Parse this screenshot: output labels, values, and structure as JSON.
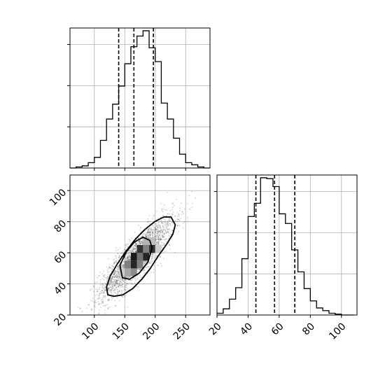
{
  "chart_data": [
    {
      "type": "histogram",
      "panel": "top-left",
      "x_ticks": [
        100,
        150,
        200,
        250
      ],
      "x_tick_labels": [
        "",
        "",
        "",
        ""
      ],
      "xlim": [
        60,
        290
      ],
      "y_tick_labels": [],
      "bin_edges": [
        60,
        70,
        80,
        90,
        100,
        110,
        120,
        130,
        140,
        150,
        160,
        170,
        180,
        190,
        200,
        210,
        220,
        230,
        240,
        250,
        260,
        270,
        280,
        290
      ],
      "counts": [
        0.0,
        0.1,
        0.2,
        0.5,
        1.0,
        2.6,
        4.6,
        6.0,
        7.7,
        9.8,
        11.4,
        12.4,
        12.9,
        11.3,
        10.0,
        6.1,
        4.6,
        2.8,
        1.3,
        0.5,
        0.3,
        0.1,
        0.0
      ],
      "quantiles": [
        140,
        165,
        197
      ],
      "grid": true
    },
    {
      "type": "histogram",
      "panel": "bottom-right",
      "x_ticks": [
        20,
        40,
        60,
        80,
        100
      ],
      "x_tick_labels": [
        "20",
        "40",
        "60",
        "80",
        "100"
      ],
      "xlim": [
        20,
        110
      ],
      "bin_edges": [
        20,
        24,
        28,
        32,
        36,
        40,
        44,
        48,
        52,
        56,
        60,
        64,
        68,
        72,
        76,
        80,
        84,
        88,
        92,
        96,
        100,
        104,
        108
      ],
      "counts": [
        0.2,
        0.7,
        1.8,
        3.1,
        6.4,
        11.2,
        12.7,
        15.6,
        15.5,
        14.6,
        11.5,
        10.4,
        7.4,
        4.9,
        3.0,
        1.6,
        0.8,
        0.5,
        0.2,
        0.1,
        0.0,
        0.0
      ],
      "quantiles": [
        45,
        57,
        70
      ],
      "grid": true
    },
    {
      "type": "scatter",
      "panel": "bottom-left",
      "x_ticks": [
        100,
        150,
        200,
        250
      ],
      "x_tick_labels": [
        "100",
        "150",
        "200",
        "250"
      ],
      "y_ticks": [
        20,
        40,
        60,
        80,
        100
      ],
      "y_tick_labels": [
        "20",
        "40",
        "60",
        "80",
        "100"
      ],
      "xlim": [
        60,
        290
      ],
      "ylim": [
        20,
        110
      ],
      "points": {
        "count": 2500,
        "mean": [
          170,
          57
        ],
        "std": [
          30,
          13
        ],
        "correlation": 0.85
      },
      "contours": [
        {
          "level": "inner",
          "points": [
            [
              142,
              52
            ],
            [
              153,
              61
            ],
            [
              166,
              67
            ],
            [
              180,
              70
            ],
            [
              191,
              68
            ],
            [
              195,
              63
            ],
            [
              188,
              54
            ],
            [
              174,
              47
            ],
            [
              158,
              43
            ],
            [
              146,
              44
            ]
          ]
        },
        {
          "level": "outer",
          "points": [
            [
              120,
              38
            ],
            [
              126,
              45
            ],
            [
              138,
              53
            ],
            [
              152,
              61
            ],
            [
              168,
              69
            ],
            [
              183,
              75
            ],
            [
              199,
              80
            ],
            [
              214,
              83
            ],
            [
              226,
              83
            ],
            [
              233,
              78
            ],
            [
              229,
              72
            ],
            [
              218,
              65
            ],
            [
              205,
              58
            ],
            [
              192,
              50
            ],
            [
              178,
              43
            ],
            [
              163,
              37
            ],
            [
              147,
              33
            ],
            [
              132,
              32
            ],
            [
              122,
              33
            ]
          ]
        }
      ],
      "density_cells": [
        {
          "x": [
            150,
            160
          ],
          "y": [
            45,
            50
          ],
          "shade": 0.65
        },
        {
          "x": [
            160,
            170
          ],
          "y": [
            45,
            50
          ],
          "shade": 0.55
        },
        {
          "x": [
            150,
            160
          ],
          "y": [
            50,
            55
          ],
          "shade": 0.5
        },
        {
          "x": [
            160,
            170
          ],
          "y": [
            50,
            55
          ],
          "shade": 0.15
        },
        {
          "x": [
            170,
            180
          ],
          "y": [
            50,
            55
          ],
          "shade": 0.5
        },
        {
          "x": [
            160,
            170
          ],
          "y": [
            55,
            60
          ],
          "shade": 0.1
        },
        {
          "x": [
            170,
            180
          ],
          "y": [
            55,
            60
          ],
          "shade": 0.45
        },
        {
          "x": [
            180,
            190
          ],
          "y": [
            55,
            60
          ],
          "shade": 0.15
        },
        {
          "x": [
            170,
            180
          ],
          "y": [
            60,
            65
          ],
          "shade": 0.2
        },
        {
          "x": [
            180,
            190
          ],
          "y": [
            60,
            65
          ],
          "shade": 0.5
        },
        {
          "x": [
            190,
            200
          ],
          "y": [
            60,
            65
          ],
          "shade": 0.2
        },
        {
          "x": [
            180,
            190
          ],
          "y": [
            65,
            70
          ],
          "shade": 0.7
        },
        {
          "x": [
            190,
            200
          ],
          "y": [
            65,
            70
          ],
          "shade": 0.75
        },
        {
          "x": [
            140,
            150
          ],
          "y": [
            45,
            50
          ],
          "shade": 0.8
        },
        {
          "x": [
            200,
            210
          ],
          "y": [
            60,
            65
          ],
          "shade": 0.8
        }
      ],
      "grid": true
    }
  ]
}
